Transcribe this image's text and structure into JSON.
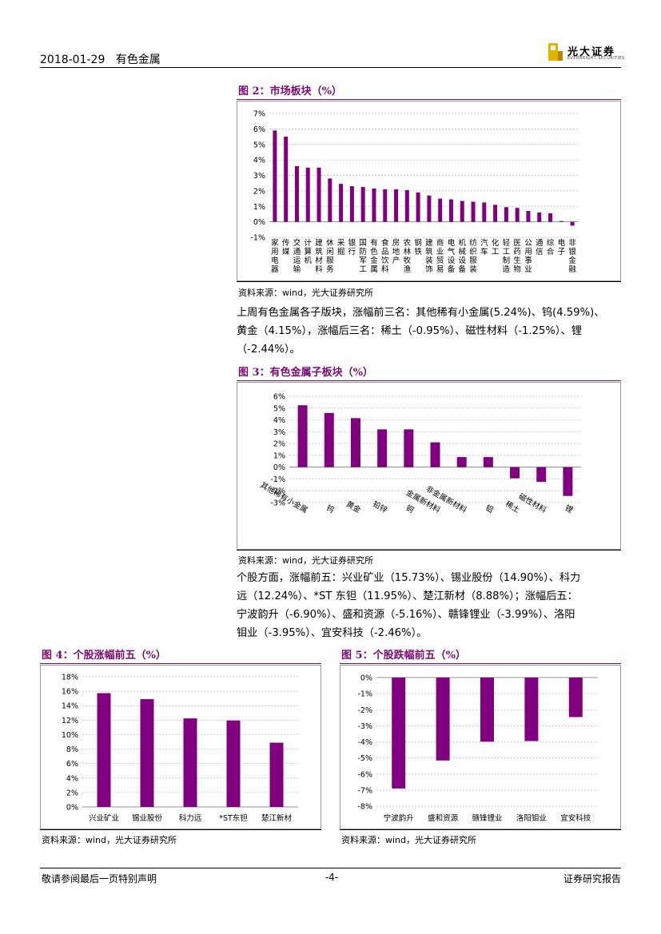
{
  "header": {
    "date": "2018-01-29",
    "sector": "有色金属",
    "brand_cn": "光大证券",
    "brand_en": "EVERBRIGHT SECURITIES"
  },
  "colors": {
    "bar": "#800080",
    "title": "#7b0a6e"
  },
  "fig2": {
    "title": "图 2：市场板块（%）",
    "source": "资料来源：wind，光大证券研究所",
    "chart_data": {
      "type": "bar",
      "categories": [
        "家用电器",
        "传媒",
        "交通运输",
        "计算机",
        "建筑材料",
        "休闲服务",
        "采掘",
        "银行",
        "国防军工",
        "有色金属",
        "食品饮料",
        "房地产",
        "农林牧渔",
        "钢铁",
        "建筑装饰",
        "商业贸易",
        "电气设备",
        "机械设备",
        "纺织服装",
        "汽车",
        "化工",
        "轻工制造",
        "医药生物",
        "公用事业",
        "通信",
        "综合",
        "电子",
        "非银金融"
      ],
      "values": [
        5.9,
        5.5,
        3.6,
        3.5,
        3.5,
        2.8,
        2.45,
        2.3,
        2.25,
        2.15,
        2.1,
        2.1,
        2.05,
        1.9,
        1.7,
        1.5,
        1.45,
        1.35,
        1.3,
        1.25,
        1.1,
        0.95,
        0.9,
        0.7,
        0.6,
        0.55,
        0.05,
        -0.25
      ],
      "ylim": [
        -1,
        7
      ],
      "yticks": [
        "-1%",
        "0%",
        "1%",
        "2%",
        "3%",
        "4%",
        "5%",
        "6%",
        "7%"
      ],
      "title": "",
      "xlabel": "",
      "ylabel": ""
    }
  },
  "para1": [
    "上周有色金属各子版块，涨幅前三名：其他稀有小金属(5.24%)、钨(4.59%)、",
    "黄金（4.15%），涨幅后三名：稀土（-0.95%）、磁性材料（-1.25%）、锂",
    "（-2.44%）。"
  ],
  "fig3": {
    "title": "图 3：有色金属子板块（%）",
    "source": "资料来源：wind，光大证券研究所",
    "chart_data": {
      "type": "bar",
      "categories": [
        "其他稀有小金属",
        "钨",
        "黄金",
        "铅锌",
        "铜",
        "金属新材料",
        "非金属新材料",
        "铝",
        "稀土",
        "磁性材料",
        "锂"
      ],
      "values": [
        5.24,
        4.59,
        4.15,
        3.2,
        3.2,
        2.1,
        0.85,
        0.85,
        -0.95,
        -1.25,
        -2.44
      ],
      "ylim": [
        -3,
        6
      ],
      "yticks": [
        "-3%",
        "-2%",
        "-1%",
        "0%",
        "1%",
        "2%",
        "3%",
        "4%",
        "5%",
        "6%"
      ],
      "title": "",
      "xlabel": "",
      "ylabel": ""
    }
  },
  "para2": [
    "个股方面，涨幅前五：兴业矿业（15.73%）、锡业股份（14.90%）、科力",
    "远（12.24%）、*ST 东钽（11.95%）、楚江新材（8.88%）；涨幅后五：",
    "宁波韵升（-6.90%）、盛和资源（-5.16%）、赣锋锂业（-3.99%）、洛阳",
    "钼业（-3.95%）、宜安科技（-2.46%）。"
  ],
  "fig4": {
    "title": "图 4：个股涨幅前五（%）",
    "source": "资料来源：wind，光大证券研究所",
    "chart_data": {
      "type": "bar",
      "categories": [
        "兴业矿业",
        "锡业股份",
        "科力远",
        "*ST东钽",
        "楚江新材"
      ],
      "values": [
        15.73,
        14.9,
        12.24,
        11.95,
        8.88
      ],
      "ylim": [
        0,
        18
      ],
      "yticks": [
        "0%",
        "2%",
        "4%",
        "6%",
        "8%",
        "10%",
        "12%",
        "14%",
        "16%",
        "18%"
      ],
      "title": "",
      "xlabel": "",
      "ylabel": ""
    }
  },
  "fig5": {
    "title": "图 5：个股跌幅前五（%）",
    "source": "资料来源：wind，光大证券研究所",
    "chart_data": {
      "type": "bar",
      "categories": [
        "宁波韵升",
        "盛和资源",
        "赣锋锂业",
        "洛阳钼业",
        "宜安科技"
      ],
      "values": [
        -6.9,
        -5.16,
        -3.99,
        -3.95,
        -2.46
      ],
      "ylim": [
        -8,
        0
      ],
      "yticks": [
        "-8%",
        "-7%",
        "-6%",
        "-5%",
        "-4%",
        "-3%",
        "-2%",
        "-1%",
        "0%"
      ],
      "title": "",
      "xlabel": "",
      "ylabel": ""
    }
  },
  "footer": {
    "left": "敬请参阅最后一页特别声明",
    "center": "-4-",
    "right": "证券研究报告"
  }
}
